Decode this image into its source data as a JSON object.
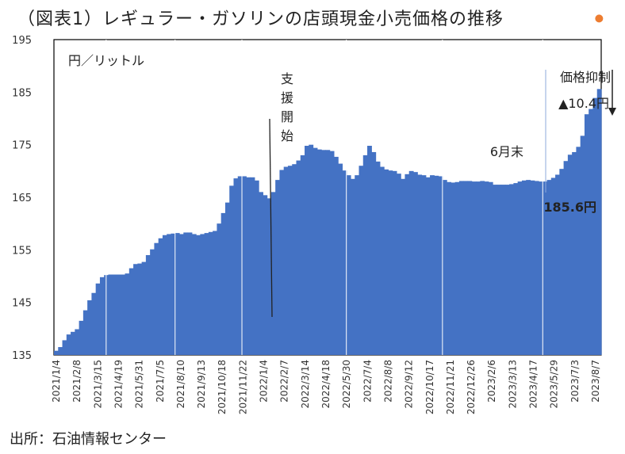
{
  "title": "（図表1）レギュラー・ガソリンの店頭現金小売価格の推移",
  "source": "出所：石油情報センター",
  "chart_data": {
    "type": "bar",
    "ylabel": "円／リットル",
    "ylim": [
      135,
      195
    ],
    "yticks": [
      135,
      145,
      155,
      165,
      175,
      185,
      195
    ],
    "x_tick_labels": [
      "2021/1/4",
      "2021/2/8",
      "2021/3/15",
      "2021/4/19",
      "2021/5/31",
      "2021/7/5",
      "2021/8/10",
      "2021/9/13",
      "2021/10/18",
      "2021/11/22",
      "2022/1/4",
      "2022/2/7",
      "2022/3/14",
      "2022/4/18",
      "2022/5/30",
      "2022/7/4",
      "2022/8/8",
      "2022/9/12",
      "2022/10/17",
      "2022/11/21",
      "2022/12/26",
      "2023/2/6",
      "2023/3/13",
      "2023/4/17",
      "2023/5/29",
      "2023/7/3",
      "2023/8/7"
    ],
    "values": [
      135.8,
      136.5,
      137.8,
      138.9,
      139.4,
      139.9,
      141.5,
      143.5,
      145.4,
      146.8,
      148.6,
      149.8,
      150.2,
      150.3,
      150.3,
      150.3,
      150.3,
      150.5,
      151.5,
      152.3,
      152.4,
      152.7,
      154.0,
      155.1,
      156.3,
      157.2,
      157.8,
      158.0,
      158.1,
      158.2,
      158.0,
      158.3,
      158.3,
      158.0,
      157.8,
      158.0,
      158.2,
      158.4,
      158.6,
      160.0,
      162.0,
      164.0,
      167.2,
      168.6,
      169.0,
      169.0,
      168.8,
      168.8,
      168.2,
      166.0,
      165.4,
      164.8,
      166.0,
      168.3,
      170.2,
      170.8,
      171.0,
      171.3,
      172.0,
      173.0,
      174.8,
      175.0,
      174.4,
      174.1,
      174.0,
      174.0,
      173.8,
      172.7,
      171.4,
      170.1,
      169.2,
      168.5,
      169.2,
      171.0,
      173.0,
      174.8,
      173.6,
      171.8,
      170.8,
      170.3,
      170.1,
      170.0,
      169.5,
      168.5,
      169.4,
      170.0,
      169.8,
      169.3,
      169.2,
      168.8,
      169.2,
      169.1,
      169.0,
      168.3,
      167.9,
      167.8,
      167.9,
      168.1,
      168.1,
      168.1,
      168.0,
      168.0,
      168.1,
      168.0,
      167.9,
      167.4,
      167.4,
      167.4,
      167.4,
      167.5,
      167.7,
      168.0,
      168.2,
      168.3,
      168.2,
      168.1,
      168.0,
      168.0,
      168.3,
      168.7,
      169.3,
      170.4,
      171.9,
      173.1,
      173.6,
      174.6,
      176.7,
      180.8,
      181.8,
      183.9,
      185.6
    ],
    "bar_color": "#4472c4",
    "annotations": {
      "support_start": "支援開始",
      "june_end": "6月末",
      "price_suppression": "価格抑制",
      "suppression_amount": "▲10.4円",
      "latest_value": "185.6円",
      "unsuppressed_marker_value": 196.0
    },
    "colors": {
      "marker": "#ed7d31",
      "latest_label": "#ffffff",
      "june_line": "#8eaadb"
    }
  }
}
